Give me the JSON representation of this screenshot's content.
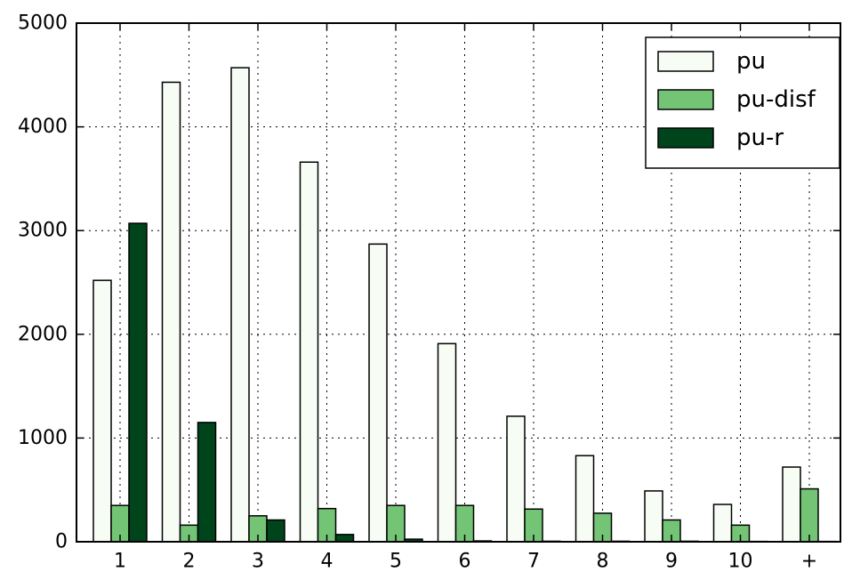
{
  "chart_data": {
    "type": "bar",
    "categories": [
      "1",
      "2",
      "3",
      "4",
      "5",
      "6",
      "7",
      "8",
      "9",
      "10",
      "+"
    ],
    "series": [
      {
        "name": "pu",
        "color": "#f7fcf5",
        "values": [
          2520,
          4430,
          4570,
          3660,
          2870,
          1910,
          1210,
          830,
          490,
          360,
          720
        ]
      },
      {
        "name": "pu-disf",
        "color": "#74c476",
        "values": [
          350,
          160,
          250,
          320,
          350,
          350,
          315,
          275,
          210,
          160,
          510
        ]
      },
      {
        "name": "pu-r",
        "color": "#00441b",
        "values": [
          3070,
          1150,
          210,
          70,
          25,
          8,
          5,
          5,
          5,
          3,
          3
        ]
      }
    ],
    "ylim": [
      0,
      5000
    ],
    "yticks": [
      "0",
      "1000",
      "2000",
      "3000",
      "4000",
      "5000"
    ],
    "grid": true,
    "legend_position": "top-right",
    "title": "",
    "xlabel": "",
    "ylabel": ""
  }
}
